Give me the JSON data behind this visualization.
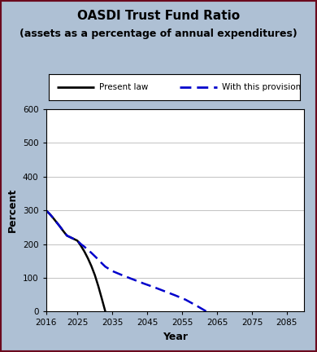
{
  "title_line1": "OASDI Trust Fund Ratio",
  "title_line2": "(assets as a percentage of annual expenditures)",
  "xlabel": "Year",
  "ylabel": "Percent",
  "background_color": "#aec0d4",
  "plot_bg_color": "#ffffff",
  "ylim": [
    0,
    600
  ],
  "xlim": [
    2016,
    2090
  ],
  "yticks": [
    0,
    100,
    200,
    300,
    400,
    500,
    600
  ],
  "xticks": [
    2016,
    2025,
    2035,
    2045,
    2055,
    2065,
    2075,
    2085
  ],
  "present_law": {
    "x": [
      2016,
      2017,
      2018,
      2019,
      2020,
      2021,
      2022,
      2023,
      2024,
      2025,
      2026,
      2027,
      2028,
      2029,
      2030,
      2031,
      2032,
      2033
    ],
    "y": [
      300,
      290,
      278,
      265,
      252,
      238,
      225,
      220,
      215,
      210,
      195,
      178,
      158,
      135,
      108,
      75,
      38,
      0
    ],
    "color": "#000000",
    "linewidth": 1.8,
    "label": "Present law"
  },
  "provision": {
    "x": [
      2016,
      2017,
      2018,
      2019,
      2020,
      2021,
      2022,
      2023,
      2024,
      2025,
      2026,
      2027,
      2028,
      2029,
      2030,
      2031,
      2032,
      2033,
      2035,
      2038,
      2041,
      2044,
      2047,
      2050,
      2053,
      2056,
      2059,
      2062
    ],
    "y": [
      300,
      290,
      278,
      265,
      252,
      238,
      225,
      220,
      215,
      210,
      200,
      192,
      183,
      174,
      164,
      154,
      143,
      133,
      120,
      107,
      95,
      83,
      72,
      60,
      48,
      35,
      18,
      0
    ],
    "color": "#0000cc",
    "linewidth": 1.8,
    "label": "With this provision"
  },
  "legend_box_color": "#ffffff",
  "outer_border_color": "#6b0a1e",
  "title_fontsize": 11,
  "subtitle_fontsize": 9,
  "axis_label_fontsize": 9,
  "tick_fontsize": 7.5
}
